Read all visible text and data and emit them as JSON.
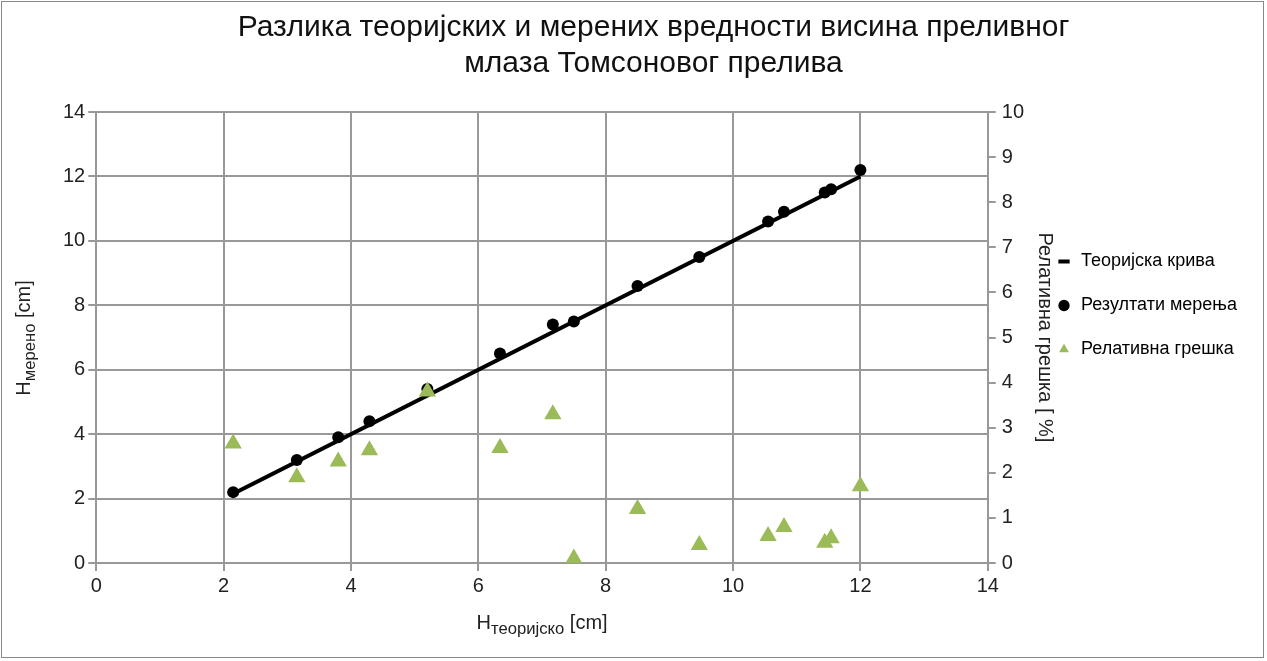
{
  "chart_data": {
    "type": "scatter",
    "title": [
      "Разлика теоријских и мерених вредности висина преливног",
      "млаза Томсоновог прелива"
    ],
    "xlabel": "H$_{теоријско}$ [cm]",
    "ylabel": "H$_{мерено}$  [cm]",
    "y2label": "Релативна грешка [ %]",
    "xlim": [
      0,
      14
    ],
    "xticks": [
      0,
      2,
      4,
      6,
      8,
      10,
      12,
      14
    ],
    "ylim": [
      0,
      14
    ],
    "yticks": [
      0,
      2,
      4,
      6,
      8,
      10,
      12,
      14
    ],
    "y2lim": [
      0,
      10
    ],
    "y2ticks": [
      0,
      1,
      2,
      3,
      4,
      5,
      6,
      7,
      8,
      9,
      10
    ],
    "grid": true,
    "legend": "right",
    "series": [
      {
        "name": "Теоријска крива",
        "type": "line",
        "color": "#000000",
        "marker": "none",
        "line_style": "solid",
        "x": [
          2.15,
          12
        ],
        "values": [
          2.15,
          12
        ]
      },
      {
        "name": "Резултати мерења",
        "color": "#000000",
        "marker": "circle",
        "x": [
          2.15,
          3.15,
          3.8,
          4.29,
          5.2,
          6.34,
          7.17,
          7.5,
          8.5,
          9.47,
          10.55,
          10.8,
          11.44,
          11.54,
          12
        ],
        "values": [
          2.2,
          3.2,
          3.9,
          4.4,
          5.4,
          6.5,
          7.4,
          7.5,
          8.6,
          9.5,
          10.6,
          10.9,
          11.5,
          11.6,
          12.2
        ]
      },
      {
        "name": "Релативна грешка",
        "axis": "y2",
        "color": "#9bbb59",
        "marker": "triangle",
        "x": [
          2.15,
          3.15,
          3.8,
          4.29,
          5.2,
          6.34,
          7.17,
          7.5,
          8.5,
          9.47,
          10.55,
          10.8,
          11.44,
          11.54,
          12
        ],
        "values": [
          2.65,
          1.9,
          2.25,
          2.5,
          3.8,
          2.55,
          3.3,
          0.1,
          1.2,
          0.4,
          0.6,
          0.8,
          0.45,
          0.55,
          1.7
        ]
      }
    ]
  }
}
